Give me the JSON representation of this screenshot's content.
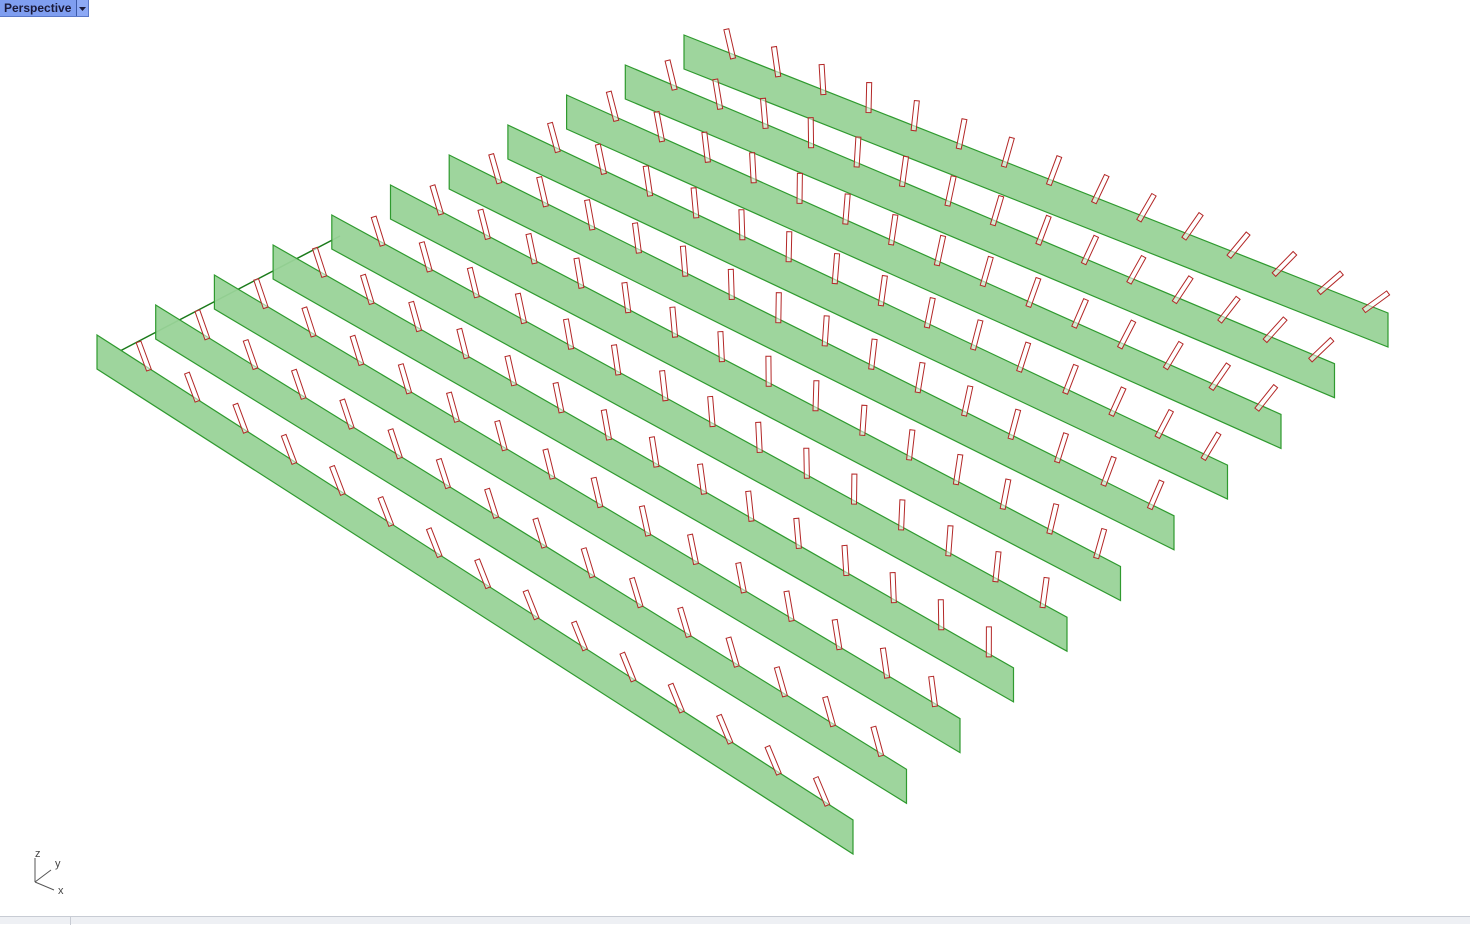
{
  "viewport": {
    "title": "Perspective",
    "background": "#ffffff"
  },
  "axis": {
    "z_label": "z",
    "y_label": "y",
    "x_label": "x"
  },
  "scene": {
    "panel_count": 11,
    "fin_counts": [
      15,
      15,
      15,
      15,
      15,
      15,
      15,
      15,
      15,
      15,
      15
    ],
    "panel_fill": "#99d398",
    "panel_edge": "#2f9a2f",
    "fin_fill": "#ffffff",
    "fin_edge": "#b32727",
    "guide_line": "#1a7a1a"
  },
  "icons": {
    "menu": "chevron-down-icon"
  }
}
